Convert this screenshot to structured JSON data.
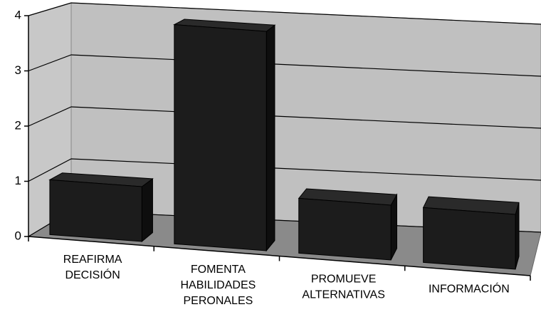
{
  "chart_data": {
    "type": "bar3d",
    "categories": [
      [
        "REAFIRMA",
        "DECISIÓN"
      ],
      [
        "FOMENTA",
        "HABILIDADES",
        "PERONALES"
      ],
      [
        "PROMUEVE",
        "ALTERNATIVAS"
      ],
      [
        "INFORMACIÓN"
      ]
    ],
    "values": [
      1,
      4,
      1,
      1
    ],
    "color": "#1c1c1c",
    "ylim": [
      0,
      4
    ],
    "yticks": [
      0,
      1,
      2,
      3,
      4
    ],
    "grid": true
  }
}
